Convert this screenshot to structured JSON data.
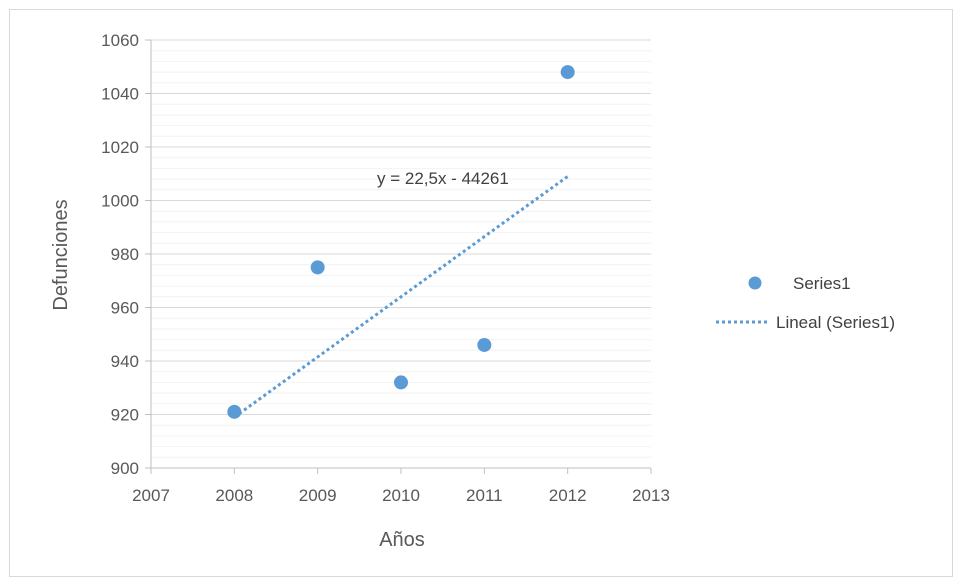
{
  "chart_data": {
    "type": "scatter",
    "title": "",
    "xlabel": "Años",
    "ylabel": "Defunciones",
    "xlim": [
      2007,
      2013
    ],
    "ylim": [
      900,
      1060
    ],
    "xticks": [
      2007,
      2008,
      2009,
      2010,
      2011,
      2012,
      2013
    ],
    "yticks": [
      900,
      920,
      940,
      960,
      980,
      1000,
      1020,
      1040,
      1060
    ],
    "grid": "horizontal major and minor",
    "legend_position": "right",
    "series": [
      {
        "name": "Series1",
        "color": "#5b9bd5",
        "points": [
          {
            "x": 2008,
            "y": 921
          },
          {
            "x": 2009,
            "y": 975
          },
          {
            "x": 2010,
            "y": 932
          },
          {
            "x": 2011,
            "y": 946
          },
          {
            "x": 2012,
            "y": 1048
          }
        ]
      }
    ],
    "trendline": {
      "name": "Lineal (Series1)",
      "type": "linear",
      "slope": 22.5,
      "intercept": -44261,
      "x_range": [
        2008,
        2012
      ],
      "equation": "y = 22,5x - 44261",
      "style": "dotted",
      "color": "#5b9bd5"
    }
  }
}
